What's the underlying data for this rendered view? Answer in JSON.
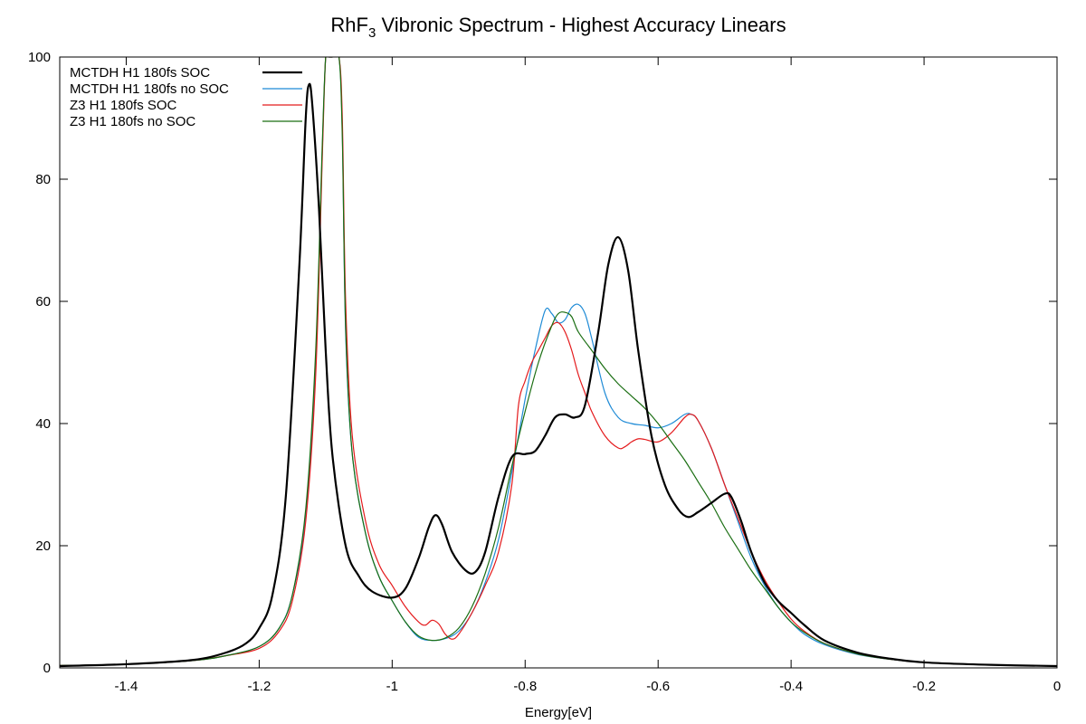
{
  "chart_data": {
    "type": "line",
    "title_prefix": "RhF",
    "title_subscript": "3",
    "title_suffix": " Vibronic Spectrum - Highest Accuracy Linears",
    "xlabel": "Energy[eV]",
    "ylabel": "",
    "xlim": [
      -1.5,
      0
    ],
    "ylim": [
      0,
      100
    ],
    "x_ticks": [
      -1.4,
      -1.2,
      -1,
      -0.8,
      -0.6,
      -0.4,
      -0.2,
      0
    ],
    "x_tick_labels": [
      "-1.4",
      "-1.2",
      "-1",
      "-0.8",
      "-0.6",
      "-0.4",
      "-0.2",
      "0"
    ],
    "y_ticks": [
      0,
      20,
      40,
      60,
      80,
      100
    ],
    "y_tick_labels": [
      "0",
      "20",
      "40",
      "60",
      "80",
      "100"
    ],
    "grid": false,
    "zero_line": "dotted",
    "legend_position": "top-left",
    "series": [
      {
        "name": "MCTDH H1 180fs SOC",
        "color": "#000000",
        "width": 2.2,
        "points": [
          [
            -1.5,
            0.3
          ],
          [
            -1.4,
            0.6
          ],
          [
            -1.3,
            1.3
          ],
          [
            -1.25,
            2.5
          ],
          [
            -1.22,
            4.0
          ],
          [
            -1.2,
            6.5
          ],
          [
            -1.18,
            12
          ],
          [
            -1.16,
            28
          ],
          [
            -1.14,
            65
          ],
          [
            -1.13,
            90
          ],
          [
            -1.125,
            95.5
          ],
          [
            -1.12,
            92
          ],
          [
            -1.11,
            75
          ],
          [
            -1.1,
            52
          ],
          [
            -1.09,
            35
          ],
          [
            -1.07,
            20
          ],
          [
            -1.05,
            15
          ],
          [
            -1.03,
            12.5
          ],
          [
            -1.0,
            11.5
          ],
          [
            -0.98,
            13
          ],
          [
            -0.96,
            18
          ],
          [
            -0.945,
            23
          ],
          [
            -0.935,
            25
          ],
          [
            -0.925,
            23.5
          ],
          [
            -0.91,
            19
          ],
          [
            -0.89,
            16
          ],
          [
            -0.875,
            15.7
          ],
          [
            -0.86,
            19
          ],
          [
            -0.84,
            28
          ],
          [
            -0.82,
            34.5
          ],
          [
            -0.8,
            35
          ],
          [
            -0.785,
            35.5
          ],
          [
            -0.77,
            38
          ],
          [
            -0.755,
            41
          ],
          [
            -0.74,
            41.5
          ],
          [
            -0.725,
            41
          ],
          [
            -0.71,
            43
          ],
          [
            -0.69,
            55
          ],
          [
            -0.675,
            66
          ],
          [
            -0.66,
            70.5
          ],
          [
            -0.645,
            65
          ],
          [
            -0.63,
            52
          ],
          [
            -0.61,
            38
          ],
          [
            -0.59,
            30
          ],
          [
            -0.57,
            26
          ],
          [
            -0.555,
            24.7
          ],
          [
            -0.54,
            25.5
          ],
          [
            -0.52,
            27
          ],
          [
            -0.5,
            28.5
          ],
          [
            -0.49,
            28
          ],
          [
            -0.475,
            24
          ],
          [
            -0.46,
            19
          ],
          [
            -0.44,
            14
          ],
          [
            -0.42,
            11
          ],
          [
            -0.4,
            9
          ],
          [
            -0.38,
            7
          ],
          [
            -0.35,
            4.5
          ],
          [
            -0.3,
            2.5
          ],
          [
            -0.25,
            1.5
          ],
          [
            -0.2,
            0.9
          ],
          [
            -0.1,
            0.5
          ],
          [
            0,
            0.3
          ]
        ]
      },
      {
        "name": "MCTDH H1 180fs no SOC",
        "color": "#1f8bd6",
        "width": 1.2,
        "points": [
          [
            -1.5,
            0.4
          ],
          [
            -1.4,
            0.6
          ],
          [
            -1.3,
            1.2
          ],
          [
            -1.25,
            2.0
          ],
          [
            -1.2,
            3.5
          ],
          [
            -1.17,
            6.5
          ],
          [
            -1.15,
            12
          ],
          [
            -1.13,
            25
          ],
          [
            -1.115,
            50
          ],
          [
            -1.105,
            85
          ],
          [
            -1.1,
            100
          ],
          [
            -1.095,
            100
          ],
          [
            -1.09,
            100
          ],
          [
            -1.08,
            100
          ],
          [
            -1.075,
            88
          ],
          [
            -1.07,
            55
          ],
          [
            -1.06,
            35
          ],
          [
            -1.04,
            22
          ],
          [
            -1.02,
            15
          ],
          [
            -1.0,
            11
          ],
          [
            -0.98,
            7.5
          ],
          [
            -0.96,
            5
          ],
          [
            -0.94,
            4.5
          ],
          [
            -0.92,
            4.8
          ],
          [
            -0.9,
            6
          ],
          [
            -0.88,
            9
          ],
          [
            -0.86,
            14
          ],
          [
            -0.84,
            21
          ],
          [
            -0.82,
            32
          ],
          [
            -0.8,
            44
          ],
          [
            -0.785,
            52
          ],
          [
            -0.77,
            58.5
          ],
          [
            -0.76,
            58
          ],
          [
            -0.75,
            56.5
          ],
          [
            -0.74,
            57
          ],
          [
            -0.73,
            59
          ],
          [
            -0.72,
            59.5
          ],
          [
            -0.71,
            58
          ],
          [
            -0.7,
            54
          ],
          [
            -0.68,
            45
          ],
          [
            -0.66,
            41
          ],
          [
            -0.64,
            40
          ],
          [
            -0.62,
            39.7
          ],
          [
            -0.6,
            39.3
          ],
          [
            -0.58,
            40
          ],
          [
            -0.56,
            41.5
          ],
          [
            -0.55,
            41.5
          ],
          [
            -0.54,
            40.5
          ],
          [
            -0.52,
            36
          ],
          [
            -0.5,
            30
          ],
          [
            -0.48,
            24
          ],
          [
            -0.46,
            18
          ],
          [
            -0.44,
            13.5
          ],
          [
            -0.42,
            10
          ],
          [
            -0.4,
            7.5
          ],
          [
            -0.38,
            5.5
          ],
          [
            -0.35,
            3.8
          ],
          [
            -0.3,
            2.2
          ],
          [
            -0.25,
            1.4
          ],
          [
            -0.2,
            0.9
          ],
          [
            -0.1,
            0.5
          ],
          [
            0,
            0.3
          ]
        ]
      },
      {
        "name": "Z3 H1 180fs SOC",
        "color": "#e41a1c",
        "width": 1.2,
        "points": [
          [
            -1.5,
            0.4
          ],
          [
            -1.4,
            0.6
          ],
          [
            -1.3,
            1.2
          ],
          [
            -1.25,
            2.0
          ],
          [
            -1.2,
            3.2
          ],
          [
            -1.17,
            6
          ],
          [
            -1.15,
            11
          ],
          [
            -1.13,
            24
          ],
          [
            -1.115,
            48
          ],
          [
            -1.105,
            84
          ],
          [
            -1.1,
            100
          ],
          [
            -1.095,
            100
          ],
          [
            -1.09,
            100
          ],
          [
            -1.08,
            100
          ],
          [
            -1.075,
            90
          ],
          [
            -1.07,
            60
          ],
          [
            -1.06,
            38
          ],
          [
            -1.04,
            24
          ],
          [
            -1.02,
            17
          ],
          [
            -1.0,
            13.5
          ],
          [
            -0.98,
            10
          ],
          [
            -0.96,
            7.5
          ],
          [
            -0.95,
            7
          ],
          [
            -0.94,
            7.8
          ],
          [
            -0.93,
            7.2
          ],
          [
            -0.92,
            5.5
          ],
          [
            -0.91,
            4.7
          ],
          [
            -0.9,
            5.5
          ],
          [
            -0.88,
            9
          ],
          [
            -0.86,
            13.5
          ],
          [
            -0.84,
            19
          ],
          [
            -0.82,
            30
          ],
          [
            -0.81,
            43
          ],
          [
            -0.8,
            47
          ],
          [
            -0.79,
            50
          ],
          [
            -0.78,
            52
          ],
          [
            -0.77,
            54
          ],
          [
            -0.76,
            56
          ],
          [
            -0.75,
            56.5
          ],
          [
            -0.74,
            55
          ],
          [
            -0.73,
            52
          ],
          [
            -0.72,
            48
          ],
          [
            -0.71,
            45
          ],
          [
            -0.7,
            42
          ],
          [
            -0.68,
            38
          ],
          [
            -0.66,
            36
          ],
          [
            -0.65,
            36.2
          ],
          [
            -0.64,
            37
          ],
          [
            -0.63,
            37.5
          ],
          [
            -0.62,
            37.4
          ],
          [
            -0.6,
            37
          ],
          [
            -0.58,
            38.5
          ],
          [
            -0.56,
            41
          ],
          [
            -0.55,
            41.5
          ],
          [
            -0.54,
            40.5
          ],
          [
            -0.52,
            36
          ],
          [
            -0.5,
            30
          ],
          [
            -0.48,
            24.5
          ],
          [
            -0.46,
            19
          ],
          [
            -0.44,
            14.5
          ],
          [
            -0.42,
            11
          ],
          [
            -0.4,
            8
          ],
          [
            -0.38,
            6
          ],
          [
            -0.35,
            4
          ],
          [
            -0.3,
            2.3
          ],
          [
            -0.25,
            1.4
          ],
          [
            -0.2,
            0.9
          ],
          [
            -0.1,
            0.5
          ],
          [
            0,
            0.3
          ]
        ]
      },
      {
        "name": "Z3 H1 180fs no SOC",
        "color": "#1a6e12",
        "width": 1.2,
        "points": [
          [
            -1.5,
            0.4
          ],
          [
            -1.4,
            0.6
          ],
          [
            -1.3,
            1.2
          ],
          [
            -1.25,
            2.0
          ],
          [
            -1.2,
            3.5
          ],
          [
            -1.17,
            6.5
          ],
          [
            -1.15,
            12
          ],
          [
            -1.13,
            26
          ],
          [
            -1.115,
            52
          ],
          [
            -1.105,
            86
          ],
          [
            -1.1,
            100
          ],
          [
            -1.095,
            100
          ],
          [
            -1.09,
            100
          ],
          [
            -1.08,
            100
          ],
          [
            -1.075,
            87
          ],
          [
            -1.07,
            56
          ],
          [
            -1.06,
            35
          ],
          [
            -1.04,
            22
          ],
          [
            -1.02,
            15
          ],
          [
            -1.0,
            11
          ],
          [
            -0.98,
            7.5
          ],
          [
            -0.96,
            5.2
          ],
          [
            -0.94,
            4.5
          ],
          [
            -0.92,
            4.9
          ],
          [
            -0.9,
            6.5
          ],
          [
            -0.88,
            10
          ],
          [
            -0.86,
            15.5
          ],
          [
            -0.84,
            23
          ],
          [
            -0.82,
            33
          ],
          [
            -0.8,
            42
          ],
          [
            -0.78,
            50
          ],
          [
            -0.76,
            56
          ],
          [
            -0.75,
            58
          ],
          [
            -0.74,
            58.2
          ],
          [
            -0.73,
            57.5
          ],
          [
            -0.72,
            55
          ],
          [
            -0.7,
            52
          ],
          [
            -0.68,
            49
          ],
          [
            -0.66,
            46.5
          ],
          [
            -0.64,
            44.5
          ],
          [
            -0.62,
            42.5
          ],
          [
            -0.6,
            40
          ],
          [
            -0.58,
            37
          ],
          [
            -0.56,
            34
          ],
          [
            -0.54,
            30.5
          ],
          [
            -0.52,
            27
          ],
          [
            -0.5,
            23
          ],
          [
            -0.48,
            19.5
          ],
          [
            -0.46,
            16
          ],
          [
            -0.44,
            13
          ],
          [
            -0.42,
            10
          ],
          [
            -0.4,
            7.5
          ],
          [
            -0.38,
            5.8
          ],
          [
            -0.35,
            4
          ],
          [
            -0.3,
            2.3
          ],
          [
            -0.25,
            1.4
          ],
          [
            -0.2,
            0.9
          ],
          [
            -0.1,
            0.5
          ],
          [
            0,
            0.3
          ]
        ]
      }
    ]
  }
}
